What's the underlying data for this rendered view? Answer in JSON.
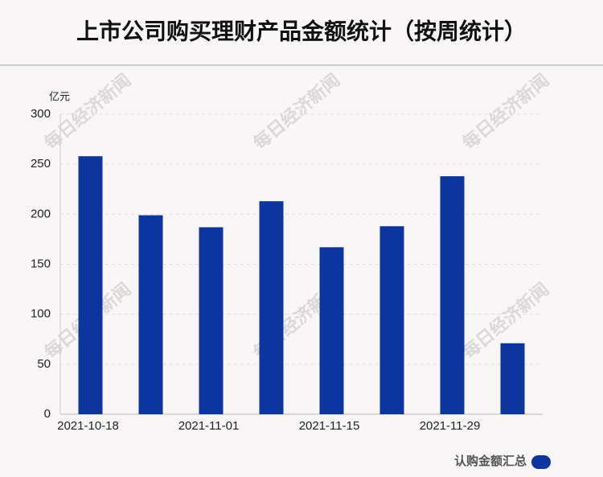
{
  "chart_data": {
    "type": "bar",
    "title": "上市公司购买理财产品金额统计（按周统计）",
    "y_label": "亿元",
    "watermark": "每日经济新闻",
    "categories": [
      "2021-10-18",
      null,
      "2021-11-01",
      null,
      "2021-11-15",
      null,
      "2021-11-29",
      null
    ],
    "series": [
      {
        "name": "认购金额汇总",
        "color": "#0d35a0",
        "values": [
          258,
          199,
          187,
          213,
          167,
          188,
          238,
          71
        ]
      }
    ],
    "ylim": [
      0,
      300
    ],
    "yticks": [
      0,
      50,
      100,
      150,
      200,
      250,
      300
    ],
    "grid": true,
    "legend": "bottom-right"
  }
}
